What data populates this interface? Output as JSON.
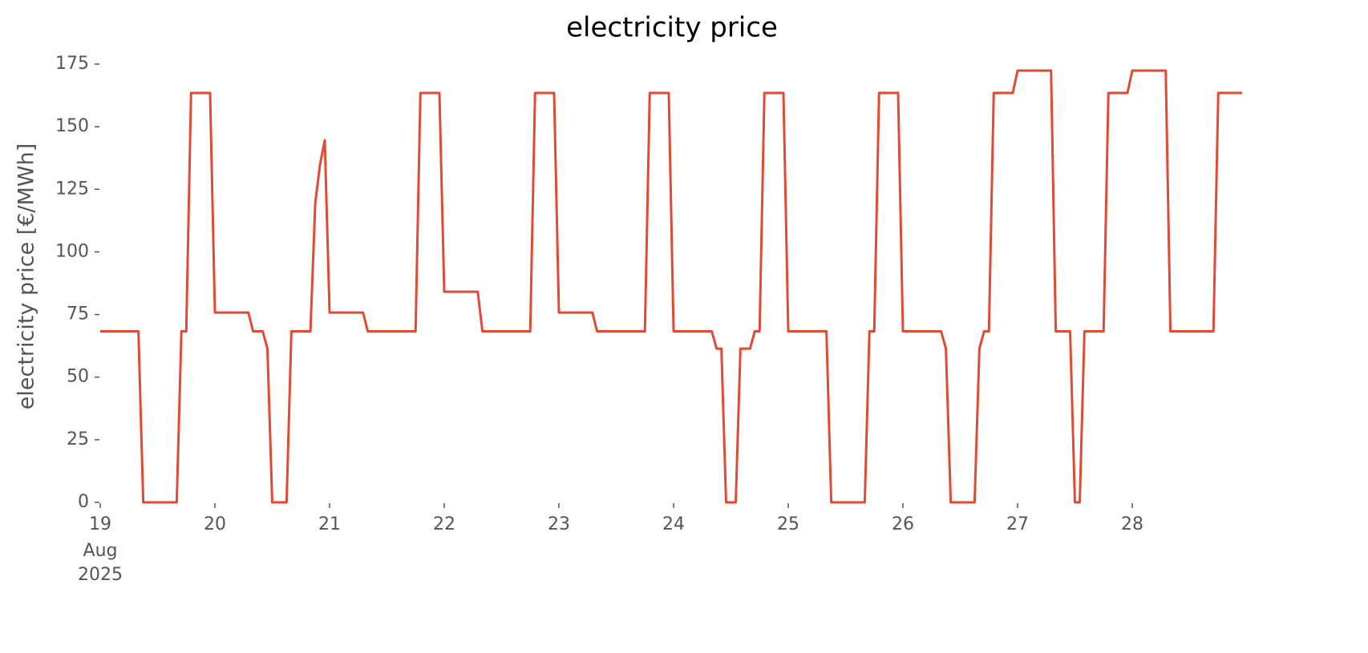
{
  "chart_data": {
    "type": "line",
    "title": "electricity price",
    "y_label": "electricity price [€/MWh]",
    "x_date_label": [
      "Aug",
      "2025"
    ],
    "x": [
      19,
      19.333,
      19.375,
      19.667,
      19.708,
      19.75,
      19.792,
      19.958,
      20,
      20.292,
      20.333,
      20.417,
      20.458,
      20.5,
      20.625,
      20.667,
      20.833,
      20.875,
      20.917,
      20.958,
      21,
      21.292,
      21.333,
      21.75,
      21.792,
      21.958,
      22,
      22.292,
      22.333,
      22.75,
      22.792,
      22.958,
      23,
      23.292,
      23.333,
      23.75,
      23.792,
      23.958,
      24,
      24.333,
      24.375,
      24.417,
      24.458,
      24.542,
      24.583,
      24.667,
      24.708,
      24.75,
      24.792,
      24.958,
      25,
      25.333,
      25.375,
      25.667,
      25.708,
      25.75,
      25.792,
      25.958,
      26,
      26.333,
      26.375,
      26.417,
      26.625,
      26.667,
      26.708,
      26.75,
      26.792,
      26.958,
      27,
      27.292,
      27.333,
      27.458,
      27.5,
      27.542,
      27.583,
      27.75,
      27.792,
      27.958,
      28,
      28.292,
      28.333,
      28.708,
      28.75,
      28.958
    ],
    "series": [
      {
        "name": "electricity price",
        "color": "#e24a33",
        "values": [
          68.3,
          68.3,
          0,
          0,
          68.3,
          68.3,
          163.5,
          163.5,
          75.8,
          75.8,
          68.3,
          68.3,
          61.4,
          0,
          0,
          68.3,
          68.3,
          119.6,
          135,
          144.6,
          75.8,
          75.8,
          68.3,
          68.3,
          163.5,
          163.5,
          84.1,
          84.1,
          68.3,
          68.3,
          163.5,
          163.5,
          75.8,
          75.8,
          68.3,
          68.3,
          163.5,
          163.5,
          68.3,
          68.3,
          61.4,
          61.4,
          0,
          0,
          61.4,
          61.4,
          68.3,
          68.3,
          163.5,
          163.5,
          68.3,
          68.3,
          0,
          0,
          68.3,
          68.3,
          163.5,
          163.5,
          68.3,
          68.3,
          61.4,
          0,
          0,
          61.4,
          68.3,
          68.3,
          163.5,
          163.5,
          172.4,
          172.4,
          68.3,
          68.3,
          0,
          0,
          68.3,
          68.3,
          163.5,
          163.5,
          172.4,
          172.4,
          68.3,
          68.3,
          163.5,
          163.5
        ]
      }
    ],
    "xlim": [
      19,
      28.958
    ],
    "xticks": [
      19,
      20,
      21,
      22,
      23,
      24,
      25,
      26,
      27,
      28
    ],
    "ylim": [
      0,
      175
    ],
    "yticks": [
      0,
      25,
      50,
      75,
      100,
      125,
      150,
      175
    ],
    "grid": false
  }
}
